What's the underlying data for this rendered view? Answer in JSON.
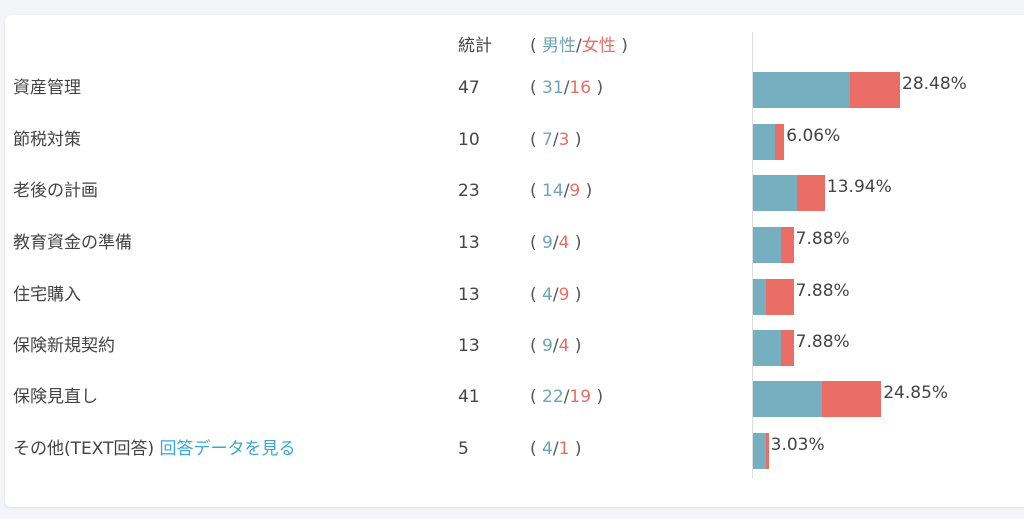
{
  "header": {
    "count_label": "統計",
    "open": "(",
    "male_label": "男性",
    "sep": "/",
    "female_label": "女性",
    "close": ")"
  },
  "colors": {
    "male": "#76afbf",
    "female": "#ea6e66",
    "link": "#3aa6d6"
  },
  "chart_data": {
    "type": "bar",
    "stacked": true,
    "orientation": "horizontal",
    "categories": [
      "資産管理",
      "節税対策",
      "老後の計画",
      "教育資金の準備",
      "住宅購入",
      "保険新規契約",
      "保険見直し",
      "その他(TEXT回答)"
    ],
    "totals": [
      47,
      10,
      23,
      13,
      13,
      13,
      41,
      5
    ],
    "series": [
      {
        "name": "男性",
        "values": [
          31,
          7,
          14,
          9,
          4,
          9,
          22,
          4
        ]
      },
      {
        "name": "女性",
        "values": [
          16,
          3,
          9,
          4,
          9,
          4,
          19,
          1
        ]
      }
    ],
    "percent_labels": [
      "28.48%",
      "6.06%",
      "13.94%",
      "7.88%",
      "7.88%",
      "7.88%",
      "24.85%",
      "3.03%"
    ]
  },
  "other_link": "回答データを見る"
}
